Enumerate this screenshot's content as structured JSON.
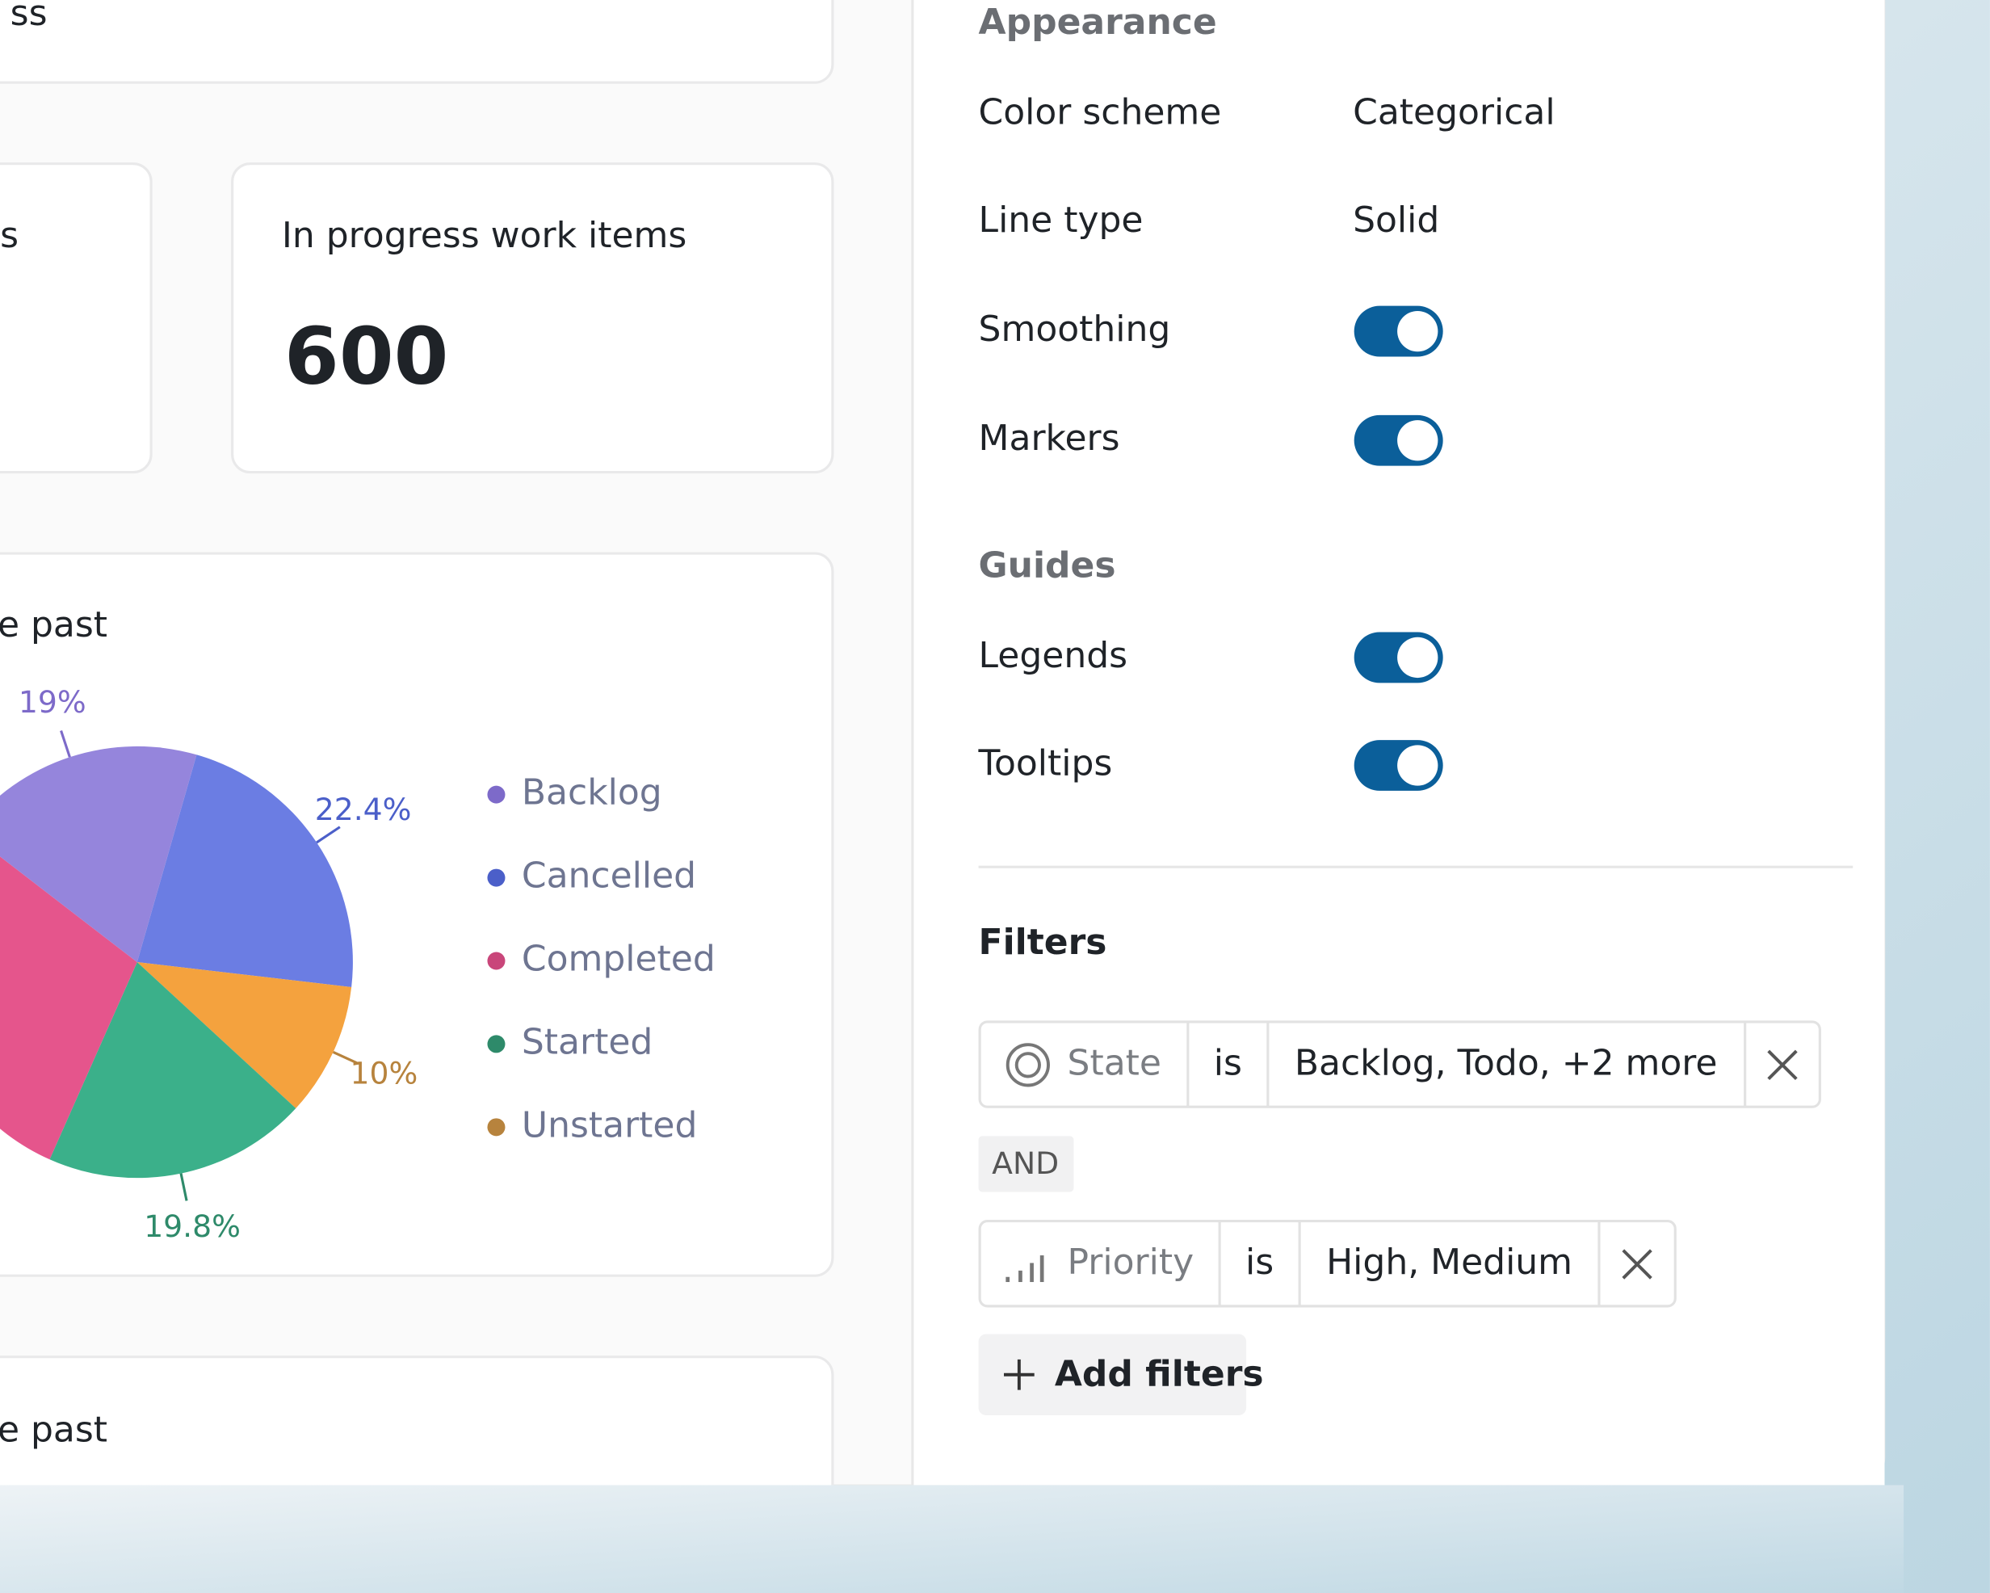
{
  "cards": {
    "top_fragment": "ss",
    "left_fragment": "s",
    "in_progress": {
      "title": "In progress work items",
      "value": "600"
    },
    "pie_title": "e past",
    "bottom_title": "e past"
  },
  "chart_data": {
    "type": "pie",
    "categories": [
      "Backlog",
      "Cancelled",
      "Completed",
      "Started",
      "Unstarted"
    ],
    "values": [
      19,
      22.4,
      28.8,
      19.8,
      10
    ],
    "value_labels": [
      "19%",
      "22.4%",
      null,
      "19.8%",
      "10%"
    ],
    "colors": [
      "#9585dc",
      "#6b7de3",
      "#e5558c",
      "#3bb08a",
      "#f4a23e"
    ],
    "label_colors": [
      "#7d6ac9",
      "#4b5fc9",
      "#c9467a",
      "#2e8a6a",
      "#b7833d"
    ],
    "legend": "right"
  },
  "settings": {
    "appearance": {
      "heading": "Appearance",
      "rows": [
        {
          "label": "Color scheme",
          "value": "Categorical"
        },
        {
          "label": "Line type",
          "value": "Solid"
        },
        {
          "label": "Smoothing",
          "enabled": true
        },
        {
          "label": "Markers",
          "enabled": true
        }
      ]
    },
    "guides": {
      "heading": "Guides",
      "rows": [
        {
          "label": "Legends",
          "enabled": true
        },
        {
          "label": "Tooltips",
          "enabled": true
        }
      ]
    },
    "filters": {
      "heading": "Filters",
      "items": [
        {
          "field": "State",
          "op": "is",
          "value": "Backlog, Todo, +2 more"
        },
        {
          "field": "Priority",
          "op": "is",
          "value": "High, Medium"
        }
      ],
      "joiner": "AND",
      "add": "Add filters"
    }
  }
}
